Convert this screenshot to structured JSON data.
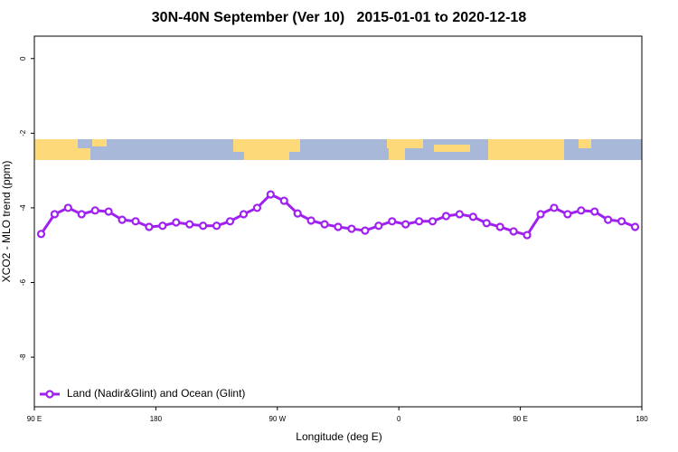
{
  "chart_data": {
    "type": "line",
    "title": "30N-40N September (Ver 10)   2015-01-01 to 2020-12-18",
    "xlabel": "Longitude (deg E)",
    "ylabel": "XCO2 - MLO trend (ppm)",
    "xlim": [
      90,
      540
    ],
    "ylim": [
      -9.33,
      0.6
    ],
    "xticks": [
      {
        "value": 90,
        "label": "90 E"
      },
      {
        "value": 180,
        "label": "180"
      },
      {
        "value": 270,
        "label": "90 W"
      },
      {
        "value": 360,
        "label": "0"
      },
      {
        "value": 450,
        "label": "90 E"
      },
      {
        "value": 540,
        "label": "180"
      }
    ],
    "yticks": [
      0,
      -2,
      -4,
      -6,
      -8
    ],
    "legend": "bottomleft",
    "x": [
      95,
      105,
      115,
      125,
      135,
      145,
      155,
      165,
      175,
      185,
      195,
      205,
      215,
      225,
      235,
      245,
      255,
      265,
      275,
      285,
      295,
      305,
      315,
      325,
      335,
      345,
      355,
      365,
      375,
      385,
      395,
      405,
      415,
      425,
      435,
      445,
      455,
      465,
      475,
      485,
      495,
      505,
      515,
      525,
      535
    ],
    "series": [
      {
        "name": "Land (Nadir&Glint) and Ocean (Glint)",
        "color": "#a020f0",
        "values": [
          -4.7,
          -4.17,
          -4.0,
          -4.17,
          -4.07,
          -4.1,
          -4.32,
          -4.36,
          -4.51,
          -4.48,
          -4.39,
          -4.44,
          -4.48,
          -4.48,
          -4.36,
          -4.17,
          -4.0,
          -3.64,
          -3.81,
          -4.15,
          -4.34,
          -4.44,
          -4.51,
          -4.56,
          -4.61,
          -4.48,
          -4.36,
          -4.44,
          -4.36,
          -4.36,
          -4.22,
          -4.17,
          -4.24,
          -4.41,
          -4.51,
          -4.63,
          -4.73,
          -4.17,
          -4.0,
          -4.17,
          -4.07,
          -4.1,
          -4.32,
          -4.36,
          -4.51
        ]
      }
    ]
  }
}
